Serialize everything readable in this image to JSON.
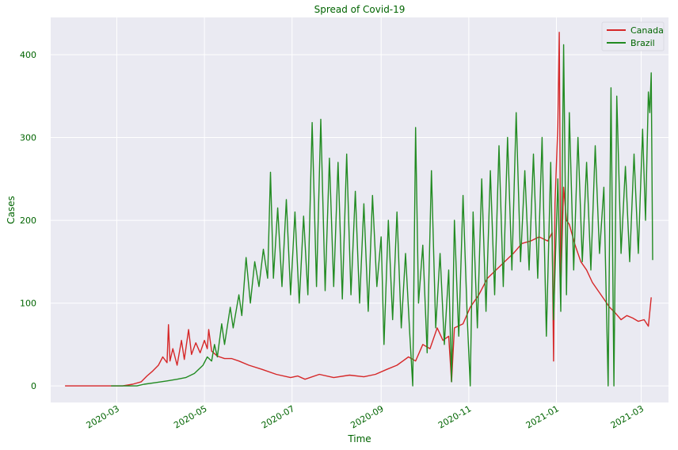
{
  "chart_data": {
    "type": "line",
    "title": "Spread of Covid-19",
    "xlabel": "Time",
    "ylabel": "Cases",
    "x_ticks": [
      "2020-03",
      "2020-05",
      "2020-07",
      "2020-09",
      "2020-11",
      "2021-01",
      "2021-03"
    ],
    "y_ticks": [
      0,
      100,
      200,
      300,
      400
    ],
    "xlim": [
      "2020-01-15",
      "2021-03-20"
    ],
    "ylim": [
      -20,
      445
    ],
    "grid": true,
    "legend_position": "top-right",
    "series": [
      {
        "name": "Canada",
        "color": "#d62728",
        "points": [
          [
            "2020-01-25",
            0
          ],
          [
            "2020-02-15",
            0
          ],
          [
            "2020-03-05",
            0
          ],
          [
            "2020-03-12",
            2
          ],
          [
            "2020-03-18",
            5
          ],
          [
            "2020-03-22",
            12
          ],
          [
            "2020-03-26",
            18
          ],
          [
            "2020-03-30",
            25
          ],
          [
            "2020-04-02",
            35
          ],
          [
            "2020-04-05",
            28
          ],
          [
            "2020-04-06",
            74
          ],
          [
            "2020-04-07",
            30
          ],
          [
            "2020-04-09",
            45
          ],
          [
            "2020-04-12",
            25
          ],
          [
            "2020-04-15",
            55
          ],
          [
            "2020-04-17",
            32
          ],
          [
            "2020-04-20",
            68
          ],
          [
            "2020-04-22",
            38
          ],
          [
            "2020-04-25",
            52
          ],
          [
            "2020-04-28",
            40
          ],
          [
            "2020-05-01",
            55
          ],
          [
            "2020-05-03",
            45
          ],
          [
            "2020-05-04",
            68
          ],
          [
            "2020-05-06",
            42
          ],
          [
            "2020-05-10",
            36
          ],
          [
            "2020-05-15",
            33
          ],
          [
            "2020-05-20",
            33
          ],
          [
            "2020-05-25",
            30
          ],
          [
            "2020-06-01",
            25
          ],
          [
            "2020-06-10",
            20
          ],
          [
            "2020-06-20",
            14
          ],
          [
            "2020-06-30",
            10
          ],
          [
            "2020-07-05",
            12
          ],
          [
            "2020-07-10",
            8
          ],
          [
            "2020-07-20",
            14
          ],
          [
            "2020-07-30",
            10
          ],
          [
            "2020-08-10",
            13
          ],
          [
            "2020-08-20",
            11
          ],
          [
            "2020-08-28",
            14
          ],
          [
            "2020-09-05",
            20
          ],
          [
            "2020-09-12",
            25
          ],
          [
            "2020-09-20",
            35
          ],
          [
            "2020-09-25",
            30
          ],
          [
            "2020-09-30",
            50
          ],
          [
            "2020-10-05",
            45
          ],
          [
            "2020-10-10",
            70
          ],
          [
            "2020-10-14",
            55
          ],
          [
            "2020-10-18",
            60
          ],
          [
            "2020-10-20",
            5
          ],
          [
            "2020-10-22",
            70
          ],
          [
            "2020-10-28",
            75
          ],
          [
            "2020-11-02",
            95
          ],
          [
            "2020-11-08",
            110
          ],
          [
            "2020-11-14",
            130
          ],
          [
            "2020-11-20",
            140
          ],
          [
            "2020-11-26",
            150
          ],
          [
            "2020-12-02",
            160
          ],
          [
            "2020-12-08",
            172
          ],
          [
            "2020-12-14",
            175
          ],
          [
            "2020-12-20",
            180
          ],
          [
            "2020-12-26",
            175
          ],
          [
            "2020-12-29",
            185
          ],
          [
            "2020-12-30",
            30
          ],
          [
            "2020-12-31",
            220
          ],
          [
            "2021-01-02",
            315
          ],
          [
            "2021-01-03",
            427
          ],
          [
            "2021-01-04",
            120
          ],
          [
            "2021-01-06",
            240
          ],
          [
            "2021-01-08",
            200
          ],
          [
            "2021-01-10",
            195
          ],
          [
            "2021-01-14",
            170
          ],
          [
            "2021-01-18",
            150
          ],
          [
            "2021-01-22",
            140
          ],
          [
            "2021-01-26",
            125
          ],
          [
            "2021-01-30",
            115
          ],
          [
            "2021-02-03",
            105
          ],
          [
            "2021-02-07",
            95
          ],
          [
            "2021-02-11",
            88
          ],
          [
            "2021-02-15",
            80
          ],
          [
            "2021-02-19",
            85
          ],
          [
            "2021-02-23",
            82
          ],
          [
            "2021-02-27",
            78
          ],
          [
            "2021-03-03",
            80
          ],
          [
            "2021-03-06",
            72
          ],
          [
            "2021-03-08",
            107
          ]
        ]
      },
      {
        "name": "Brazil",
        "color": "#228b22",
        "points": [
          [
            "2020-02-26",
            0
          ],
          [
            "2020-03-15",
            0
          ],
          [
            "2020-03-20",
            2
          ],
          [
            "2020-03-28",
            4
          ],
          [
            "2020-04-05",
            6
          ],
          [
            "2020-04-12",
            8
          ],
          [
            "2020-04-18",
            10
          ],
          [
            "2020-04-24",
            15
          ],
          [
            "2020-04-30",
            25
          ],
          [
            "2020-05-03",
            35
          ],
          [
            "2020-05-06",
            30
          ],
          [
            "2020-05-08",
            50
          ],
          [
            "2020-05-10",
            35
          ],
          [
            "2020-05-13",
            75
          ],
          [
            "2020-05-15",
            50
          ],
          [
            "2020-05-19",
            95
          ],
          [
            "2020-05-21",
            70
          ],
          [
            "2020-05-25",
            110
          ],
          [
            "2020-05-27",
            85
          ],
          [
            "2020-05-30",
            155
          ],
          [
            "2020-06-02",
            100
          ],
          [
            "2020-06-05",
            150
          ],
          [
            "2020-06-08",
            120
          ],
          [
            "2020-06-11",
            165
          ],
          [
            "2020-06-14",
            130
          ],
          [
            "2020-06-16",
            258
          ],
          [
            "2020-06-18",
            130
          ],
          [
            "2020-06-21",
            215
          ],
          [
            "2020-06-24",
            120
          ],
          [
            "2020-06-27",
            225
          ],
          [
            "2020-06-30",
            110
          ],
          [
            "2020-07-03",
            210
          ],
          [
            "2020-07-06",
            100
          ],
          [
            "2020-07-09",
            205
          ],
          [
            "2020-07-12",
            110
          ],
          [
            "2020-07-15",
            318
          ],
          [
            "2020-07-18",
            120
          ],
          [
            "2020-07-21",
            322
          ],
          [
            "2020-07-24",
            115
          ],
          [
            "2020-07-27",
            275
          ],
          [
            "2020-07-30",
            120
          ],
          [
            "2020-08-02",
            270
          ],
          [
            "2020-08-05",
            105
          ],
          [
            "2020-08-08",
            280
          ],
          [
            "2020-08-11",
            110
          ],
          [
            "2020-08-14",
            235
          ],
          [
            "2020-08-17",
            100
          ],
          [
            "2020-08-20",
            220
          ],
          [
            "2020-08-23",
            90
          ],
          [
            "2020-08-26",
            230
          ],
          [
            "2020-08-29",
            120
          ],
          [
            "2020-09-01",
            180
          ],
          [
            "2020-09-03",
            50
          ],
          [
            "2020-09-06",
            200
          ],
          [
            "2020-09-09",
            80
          ],
          [
            "2020-09-12",
            210
          ],
          [
            "2020-09-15",
            70
          ],
          [
            "2020-09-18",
            160
          ],
          [
            "2020-09-21",
            60
          ],
          [
            "2020-09-23",
            0
          ],
          [
            "2020-09-25",
            312
          ],
          [
            "2020-09-27",
            100
          ],
          [
            "2020-09-30",
            170
          ],
          [
            "2020-10-03",
            40
          ],
          [
            "2020-10-06",
            260
          ],
          [
            "2020-10-09",
            70
          ],
          [
            "2020-10-12",
            160
          ],
          [
            "2020-10-15",
            50
          ],
          [
            "2020-10-18",
            140
          ],
          [
            "2020-10-20",
            5
          ],
          [
            "2020-10-22",
            200
          ],
          [
            "2020-10-25",
            60
          ],
          [
            "2020-10-28",
            230
          ],
          [
            "2020-10-31",
            80
          ],
          [
            "2020-11-02",
            0
          ],
          [
            "2020-11-04",
            210
          ],
          [
            "2020-11-07",
            70
          ],
          [
            "2020-11-10",
            250
          ],
          [
            "2020-11-13",
            90
          ],
          [
            "2020-11-16",
            260
          ],
          [
            "2020-11-19",
            110
          ],
          [
            "2020-11-22",
            290
          ],
          [
            "2020-11-25",
            120
          ],
          [
            "2020-11-28",
            300
          ],
          [
            "2020-12-01",
            140
          ],
          [
            "2020-12-04",
            330
          ],
          [
            "2020-12-07",
            150
          ],
          [
            "2020-12-10",
            260
          ],
          [
            "2020-12-13",
            140
          ],
          [
            "2020-12-16",
            280
          ],
          [
            "2020-12-19",
            130
          ],
          [
            "2020-12-22",
            300
          ],
          [
            "2020-12-25",
            60
          ],
          [
            "2020-12-28",
            270
          ],
          [
            "2020-12-30",
            80
          ],
          [
            "2021-01-02",
            250
          ],
          [
            "2021-01-04",
            90
          ],
          [
            "2021-01-06",
            412
          ],
          [
            "2021-01-08",
            110
          ],
          [
            "2021-01-10",
            330
          ],
          [
            "2021-01-13",
            140
          ],
          [
            "2021-01-16",
            300
          ],
          [
            "2021-01-19",
            150
          ],
          [
            "2021-01-22",
            270
          ],
          [
            "2021-01-25",
            140
          ],
          [
            "2021-01-28",
            290
          ],
          [
            "2021-01-31",
            160
          ],
          [
            "2021-02-03",
            240
          ],
          [
            "2021-02-06",
            0
          ],
          [
            "2021-02-08",
            360
          ],
          [
            "2021-02-10",
            0
          ],
          [
            "2021-02-12",
            350
          ],
          [
            "2021-02-15",
            160
          ],
          [
            "2021-02-18",
            265
          ],
          [
            "2021-02-21",
            150
          ],
          [
            "2021-02-24",
            280
          ],
          [
            "2021-02-27",
            160
          ],
          [
            "2021-03-02",
            310
          ],
          [
            "2021-03-04",
            200
          ],
          [
            "2021-03-06",
            355
          ],
          [
            "2021-03-07",
            330
          ],
          [
            "2021-03-08",
            378
          ],
          [
            "2021-03-09",
            152
          ]
        ]
      }
    ]
  }
}
